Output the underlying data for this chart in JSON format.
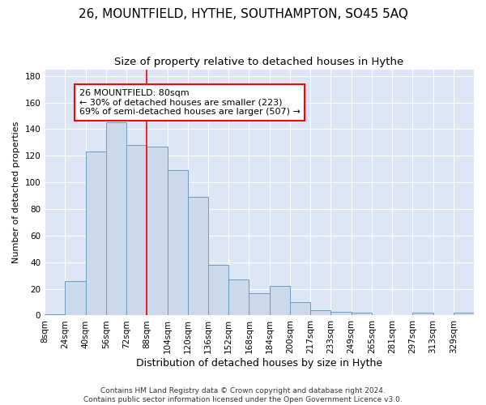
{
  "title": "26, MOUNTFIELD, HYTHE, SOUTHAMPTON, SO45 5AQ",
  "subtitle": "Size of property relative to detached houses in Hythe",
  "xlabel": "Distribution of detached houses by size in Hythe",
  "ylabel": "Number of detached properties",
  "footer": "Contains HM Land Registry data © Crown copyright and database right 2024.\nContains public sector information licensed under the Open Government Licence v3.0.",
  "bin_labels": [
    "8sqm",
    "24sqm",
    "40sqm",
    "56sqm",
    "72sqm",
    "88sqm",
    "104sqm",
    "120sqm",
    "136sqm",
    "152sqm",
    "168sqm",
    "184sqm",
    "200sqm",
    "217sqm",
    "233sqm",
    "249sqm",
    "265sqm",
    "281sqm",
    "297sqm",
    "313sqm",
    "329sqm"
  ],
  "bar_heights": [
    1,
    26,
    123,
    145,
    128,
    127,
    109,
    89,
    38,
    27,
    17,
    22,
    10,
    4,
    3,
    2,
    0,
    0,
    2,
    0,
    2
  ],
  "bar_color": "#ccd9ea",
  "bar_edge_color": "#6d9bc3",
  "annotation_text": "26 MOUNTFIELD: 80sqm\n← 30% of detached houses are smaller (223)\n69% of semi-detached houses are larger (507) →",
  "annotation_box_color": "white",
  "annotation_box_edge_color": "red",
  "vline_color": "red",
  "vline_x_index": 5,
  "ylim": [
    0,
    185
  ],
  "yticks": [
    0,
    20,
    40,
    60,
    80,
    100,
    120,
    140,
    160,
    180
  ],
  "n_bins": 21,
  "background_color": "#dce6f5",
  "title_fontsize": 11,
  "subtitle_fontsize": 9.5,
  "xlabel_fontsize": 9,
  "ylabel_fontsize": 8,
  "tick_fontsize": 7.5,
  "annotation_fontsize": 8,
  "footer_fontsize": 6.5
}
